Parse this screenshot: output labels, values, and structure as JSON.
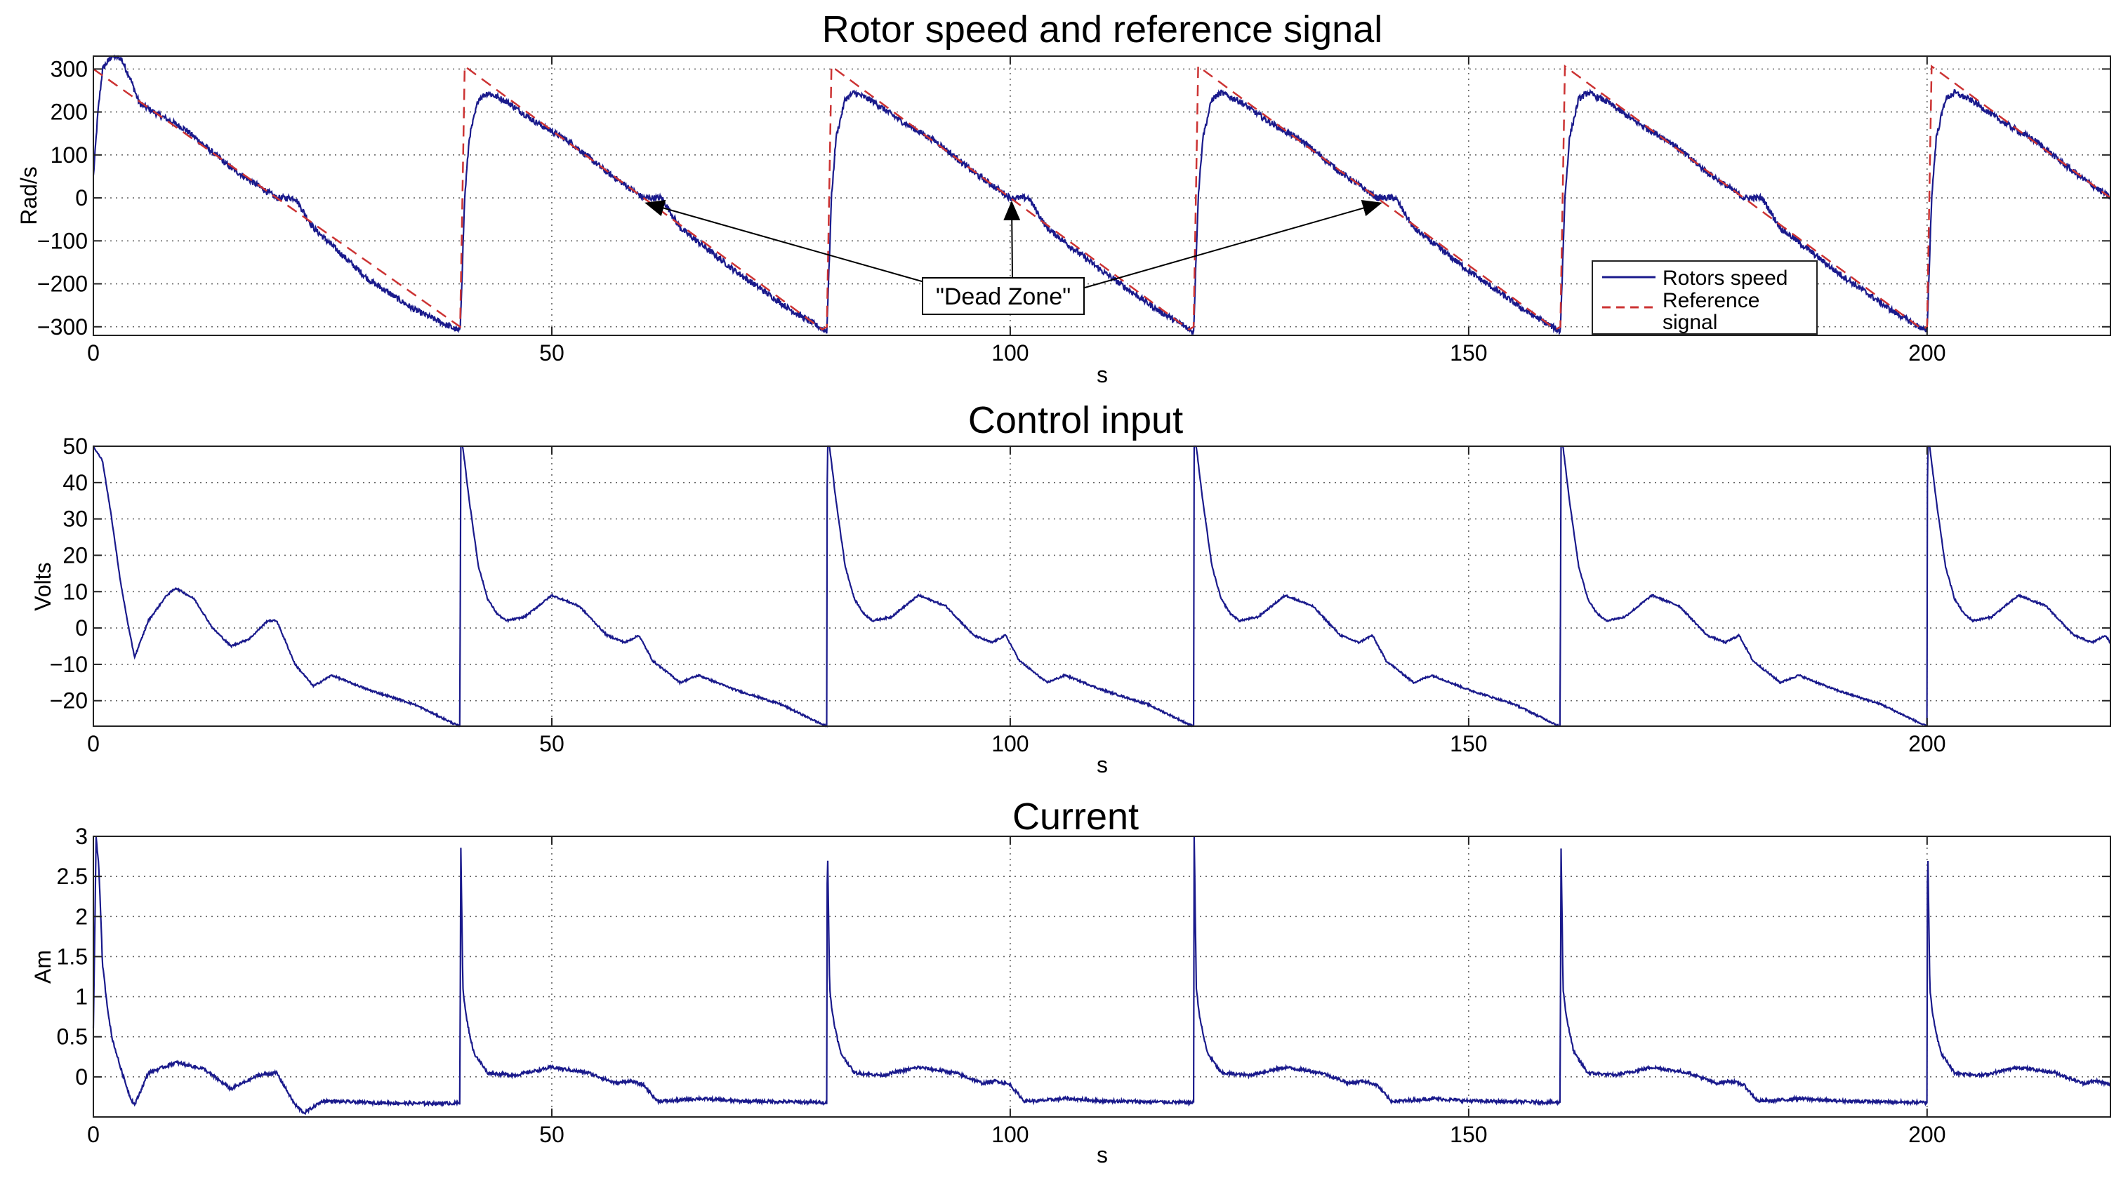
{
  "chart_data": [
    {
      "type": "line",
      "title": "Rotor speed and reference signal",
      "xlabel": "s",
      "ylabel": "Rad/s",
      "xlim": [
        0,
        220
      ],
      "ylim": [
        -320,
        330
      ],
      "xticks": [
        0,
        50,
        100,
        150,
        200
      ],
      "xtick_labels": [
        "0",
        "50",
        "100",
        "150",
        "200"
      ],
      "yticks": [
        300,
        200,
        100,
        0,
        -100,
        -200,
        -300
      ],
      "ytick_labels": [
        "300",
        "200",
        "100",
        "0",
        "−100",
        "−200",
        "−300"
      ],
      "grid": true,
      "legend": {
        "position": "bottom-right",
        "entries": [
          "Rotors speed",
          "Reference",
          "signal"
        ]
      },
      "series": [
        {
          "name": "Rotors speed",
          "color": "#1a1a8c",
          "style": "solid",
          "period": 40,
          "x": [
            0,
            0.5,
            1,
            2,
            3,
            4,
            5,
            7,
            10,
            15,
            20,
            22,
            24,
            30,
            35,
            39.9
          ],
          "y": [
            50,
            200,
            300,
            330,
            325,
            280,
            220,
            195,
            160,
            70,
            0,
            0,
            -70,
            -190,
            -260,
            -310
          ],
          "cycle_x": [
            0,
            0.5,
            1,
            2,
            3,
            5,
            8,
            12,
            16,
            20,
            22,
            24,
            30,
            36,
            39.9
          ],
          "cycle_y": [
            -310,
            0,
            140,
            230,
            245,
            225,
            180,
            130,
            60,
            0,
            0,
            -70,
            -170,
            -260,
            -310
          ]
        },
        {
          "name": "Reference signal",
          "color": "#cc3333",
          "style": "dashed",
          "period": 40,
          "x": [
            0,
            40
          ],
          "y": [
            300,
            -300
          ],
          "cycle_x": [
            0,
            0.01,
            40
          ],
          "cycle_y": [
            -300,
            314,
            -314
          ]
        }
      ],
      "annotations": [
        {
          "text": "\"Dead Zone\"",
          "targets": [
            [
              60,
              0
            ],
            [
              100,
              0
            ],
            [
              140,
              0
            ]
          ],
          "box_at": [
            99,
            -230
          ]
        }
      ]
    },
    {
      "type": "line",
      "title": "Control input",
      "xlabel": "s",
      "ylabel": "Volts",
      "xlim": [
        0,
        220
      ],
      "ylim": [
        -27,
        50
      ],
      "xticks": [
        0,
        50,
        100,
        150,
        200
      ],
      "xtick_labels": [
        "0",
        "50",
        "100",
        "150",
        "200"
      ],
      "yticks": [
        50,
        40,
        30,
        20,
        10,
        0,
        -10,
        -20
      ],
      "ytick_labels": [
        "50",
        "40",
        "30",
        "20",
        "10",
        "0",
        "−10",
        "−20"
      ],
      "grid": true,
      "series": [
        {
          "name": "Control input",
          "color": "#1a1a8c",
          "style": "solid",
          "period": 40,
          "x": [
            0,
            1,
            2,
            3,
            4,
            4.5,
            6,
            8,
            9,
            11,
            13,
            15,
            17,
            19,
            20,
            22,
            24,
            26,
            30,
            35,
            39.9
          ],
          "y": [
            50,
            46,
            30,
            12,
            -2,
            -8,
            2,
            9,
            11,
            8,
            0,
            -5,
            -3,
            2,
            2,
            -10,
            -16,
            -13,
            -17,
            -21,
            -27
          ],
          "cycle_x": [
            0,
            0.05,
            1,
            2,
            3,
            4,
            5,
            7,
            10,
            13,
            16,
            18,
            19.5,
            21,
            24,
            26,
            30,
            35,
            39.9
          ],
          "cycle_y": [
            -27,
            55,
            35,
            17,
            8,
            4,
            2,
            3,
            9,
            6,
            -2,
            -4,
            -2,
            -9,
            -15,
            -13,
            -17,
            -21,
            -27
          ]
        }
      ]
    },
    {
      "type": "line",
      "title": "Current",
      "xlabel": "s",
      "ylabel": "Am",
      "xlim": [
        0,
        220
      ],
      "ylim": [
        -0.5,
        3
      ],
      "xticks": [
        0,
        50,
        100,
        150,
        200
      ],
      "xtick_labels": [
        "0",
        "50",
        "100",
        "150",
        "200"
      ],
      "yticks": [
        3,
        2.5,
        2,
        1.5,
        1,
        0.5,
        0
      ],
      "ytick_labels": [
        "3",
        "2.5",
        "2",
        "1.5",
        "1",
        "0.5",
        "0"
      ],
      "grid": true,
      "series": [
        {
          "name": "Current",
          "color": "#1a1a8c",
          "style": "solid",
          "period": 40,
          "x": [
            0,
            0.3,
            0.6,
            1,
            1.5,
            2,
            3,
            4,
            4.5,
            6,
            9,
            12,
            15,
            18,
            20,
            22,
            23,
            25,
            30,
            35,
            39.9
          ],
          "y": [
            0.6,
            3,
            2.6,
            1.4,
            0.9,
            0.5,
            0.1,
            -0.25,
            -0.35,
            0.05,
            0.18,
            0.1,
            -0.15,
            0.02,
            0.05,
            -0.35,
            -0.45,
            -0.3,
            -0.32,
            -0.33,
            -0.33
          ],
          "cycle_x": [
            0,
            0.05,
            0.3,
            0.6,
            1,
            1.5,
            3,
            6,
            10,
            14,
            17,
            18.5,
            20,
            21.5,
            23,
            26,
            30,
            35,
            39.9
          ],
          "cycle_y": [
            -0.33,
            3.1,
            1.1,
            0.8,
            0.55,
            0.3,
            0.05,
            0.02,
            0.12,
            0.05,
            -0.08,
            -0.05,
            -0.1,
            -0.3,
            -0.3,
            -0.27,
            -0.3,
            -0.31,
            -0.32
          ]
        }
      ]
    }
  ]
}
